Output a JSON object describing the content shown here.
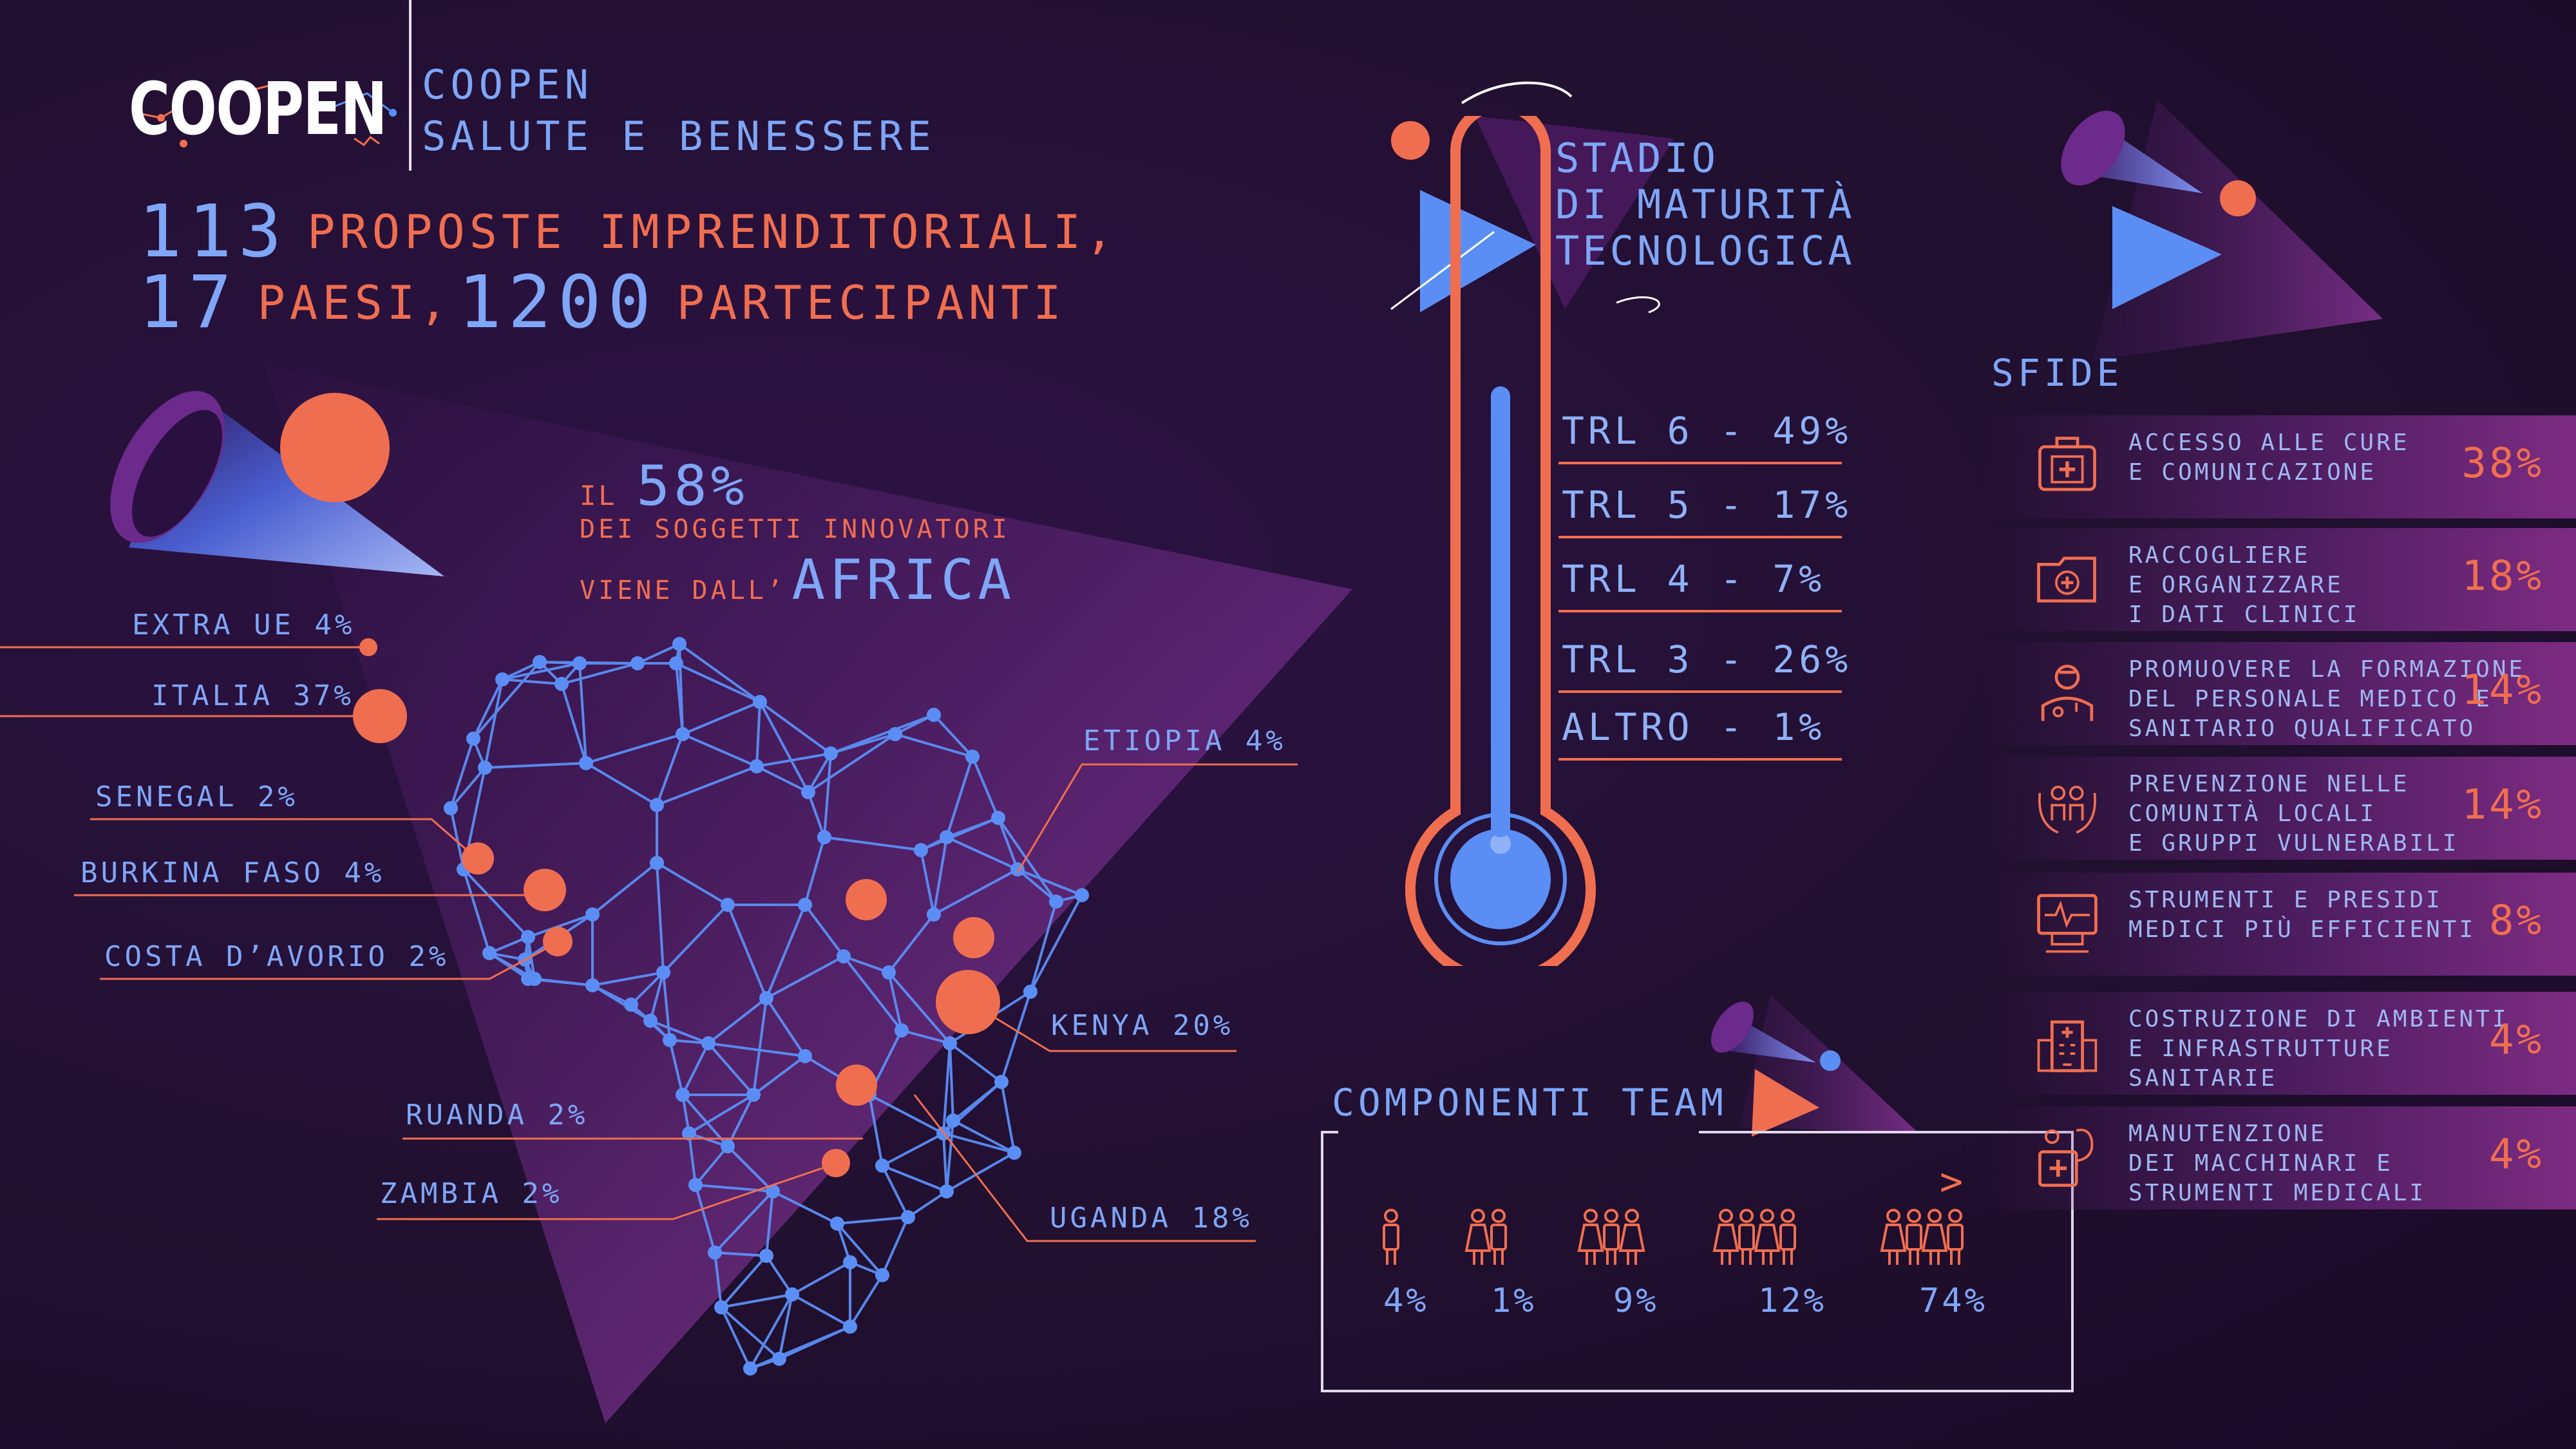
{
  "brand": {
    "logo_text": "COOPEN",
    "title_line1": "COOPEN",
    "title_line2": "SALUTE E BENESSERE"
  },
  "headline": {
    "num1": "113",
    "text1": "PROPOSTE IMPRENDITORIALI,",
    "num2": "17",
    "text2": "PAESI,",
    "num3": "1200",
    "text3": "PARTECIPANTI"
  },
  "africa": {
    "prefix": "IL",
    "percent": "58%",
    "line2": "DEI SOGGETTI INNOVATORI",
    "line3": "VIENE DALL’",
    "highlight": "AFRICA"
  },
  "countries": [
    {
      "label": "EXTRA UE 4%"
    },
    {
      "label": "ITALIA 37%"
    },
    {
      "label": "SENEGAL 2%"
    },
    {
      "label": "BURKINA FASO 4%"
    },
    {
      "label": "COSTA D’AVORIO 2%"
    },
    {
      "label": "RUANDA 2%"
    },
    {
      "label": "ZAMBIA 2%"
    },
    {
      "label": "ETIOPIA 4%"
    },
    {
      "label": "KENYA 20%"
    },
    {
      "label": "UGANDA 18%"
    }
  ],
  "trl": {
    "title": [
      "STADIO",
      "DI MATURITÀ",
      "TECNOLOGICA"
    ],
    "rows": [
      {
        "label": "TRL 6 - 49%",
        "value": 49
      },
      {
        "label": "TRL 5 - 17%",
        "value": 17
      },
      {
        "label": "TRL 4 -  7%",
        "value": 7
      },
      {
        "label": "TRL 3 - 26%",
        "value": 26
      },
      {
        "label": "ALTRO -  1%",
        "value": 1
      }
    ]
  },
  "team": {
    "title": "COMPONENTI TEAM",
    "more_symbol": ">",
    "groups": [
      {
        "people": 1,
        "pct": "4%"
      },
      {
        "people": 2,
        "pct": "1%"
      },
      {
        "people": 3,
        "pct": "9%"
      },
      {
        "people": 4,
        "pct": "12%"
      },
      {
        "people": 4,
        "pct": "74%"
      }
    ]
  },
  "sfide": {
    "title": "SFIDE",
    "items": [
      {
        "icon": "first-aid-kit-icon",
        "text": "ACCESSO ALLE CURE\nE COMUNICAZIONE",
        "pct": "38%"
      },
      {
        "icon": "medical-folder-icon",
        "text": "RACCOGLIERE\nE ORGANIZZARE\nI DATI CLINICI",
        "pct": "18%"
      },
      {
        "icon": "doctor-icon",
        "text": "PROMUOVERE LA FORMAZIONE\nDEL PERSONALE MEDICO E\nSANITARIO QUALIFICATO",
        "pct": "14%"
      },
      {
        "icon": "community-care-icon",
        "text": "PREVENZIONE NELLE\nCOMUNITÀ LOCALI\nE GRUPPI VULNERABILI",
        "pct": "14%"
      },
      {
        "icon": "medical-monitor-icon",
        "text": "STRUMENTI E PRESIDI\nMEDICI PIÙ EFFICIENTI",
        "pct": "8%"
      },
      {
        "icon": "hospital-building-icon",
        "text": "COSTRUZIONE DI AMBIENTI\nE INFRASTRUTTURE\nSANITARIE",
        "pct": "4%"
      },
      {
        "icon": "equipment-maintenance-icon",
        "text": "MANUTENZIONE\nDEI MACCHINARI E\nSTRUMENTI MEDICALI",
        "pct": "4%"
      }
    ]
  },
  "colors": {
    "background": "#21102f",
    "accent_blue": "#5b8ef5",
    "accent_orange": "#f06e50",
    "accent_purple": "#7a2d86"
  }
}
